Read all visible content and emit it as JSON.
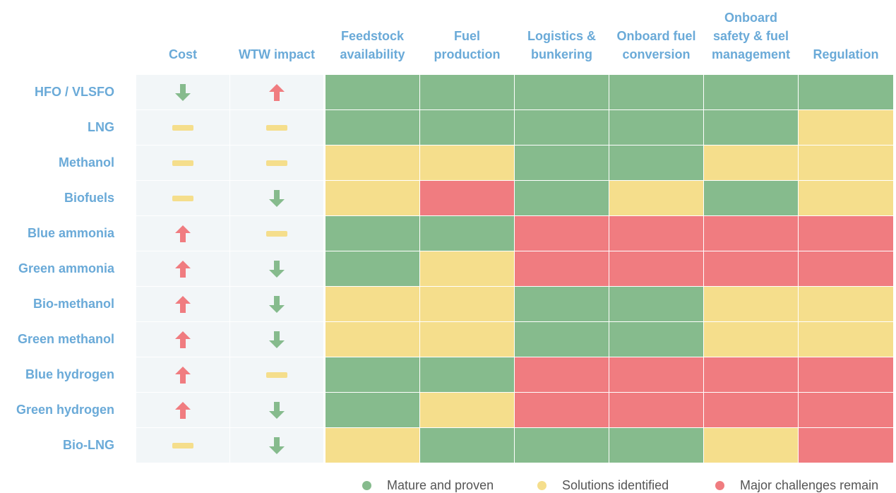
{
  "columns": [
    "Cost",
    "WTW impact",
    "Feedstock availability",
    "Fuel production",
    "Logistics & bunkering",
    "Onboard fuel conversion",
    "Onboard safety & fuel management",
    "Regulation"
  ],
  "trend_colors": {
    "up": "#f07c80",
    "down": "#86bb8d",
    "flat": "#f5de8c"
  },
  "legend": [
    {
      "label": "Mature and proven",
      "color": "#86bb8d"
    },
    {
      "label": "Solutions identified",
      "color": "#f5de8c"
    },
    {
      "label": "Major challenges remain",
      "color": "#f07c80"
    }
  ],
  "rows": [
    {
      "label": "HFO / VLSFO",
      "cost": "down",
      "wtw": "up",
      "ratings": [
        0,
        0,
        0,
        0,
        0,
        0
      ]
    },
    {
      "label": "LNG",
      "cost": "flat",
      "wtw": "flat",
      "ratings": [
        0,
        0,
        0,
        0,
        0,
        1
      ]
    },
    {
      "label": "Methanol",
      "cost": "flat",
      "wtw": "flat",
      "ratings": [
        1,
        1,
        0,
        0,
        1,
        1
      ]
    },
    {
      "label": "Biofuels",
      "cost": "flat",
      "wtw": "down",
      "ratings": [
        1,
        2,
        0,
        1,
        0,
        1
      ]
    },
    {
      "label": "Blue ammonia",
      "cost": "up",
      "wtw": "flat",
      "ratings": [
        0,
        0,
        2,
        2,
        2,
        2
      ]
    },
    {
      "label": "Green ammonia",
      "cost": "up",
      "wtw": "down",
      "ratings": [
        0,
        1,
        2,
        2,
        2,
        2
      ]
    },
    {
      "label": "Bio-methanol",
      "cost": "up",
      "wtw": "down",
      "ratings": [
        1,
        1,
        0,
        0,
        1,
        1
      ]
    },
    {
      "label": "Green methanol",
      "cost": "up",
      "wtw": "down",
      "ratings": [
        1,
        1,
        0,
        0,
        1,
        1
      ]
    },
    {
      "label": "Blue hydrogen",
      "cost": "up",
      "wtw": "flat",
      "ratings": [
        0,
        0,
        2,
        2,
        2,
        2
      ]
    },
    {
      "label": "Green hydrogen",
      "cost": "up",
      "wtw": "down",
      "ratings": [
        0,
        1,
        2,
        2,
        2,
        2
      ]
    },
    {
      "label": "Bio-LNG",
      "cost": "flat",
      "wtw": "down",
      "ratings": [
        1,
        0,
        0,
        0,
        1,
        2
      ]
    }
  ]
}
